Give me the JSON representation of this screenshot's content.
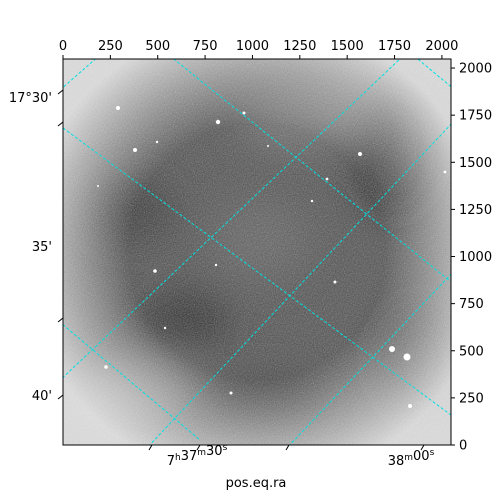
{
  "figure": {
    "xlabel": "pos.eq.ra",
    "pixel_range": {
      "x": [
        0,
        2048
      ],
      "y": [
        0,
        2048
      ]
    },
    "top_ticks": [
      "0",
      "250",
      "500",
      "750",
      "1000",
      "1250",
      "1500",
      "1750",
      "2000"
    ],
    "right_ticks": [
      "0",
      "250",
      "500",
      "750",
      "1000",
      "1250",
      "1500",
      "1750",
      "2000"
    ],
    "left_ticks": [
      "17°30'",
      "35'",
      "40'"
    ],
    "bottom_ticks": [
      {
        "main": "7",
        "sup1": "h",
        "mid": "37",
        "sup2": "m",
        "tail": "30",
        "sup3": "s"
      },
      {
        "main": "38",
        "sup1": "m",
        "mid": "00",
        "sup2": "s"
      }
    ],
    "grid_color": "#00e0e0",
    "background_color": "#3a3a3a"
  }
}
